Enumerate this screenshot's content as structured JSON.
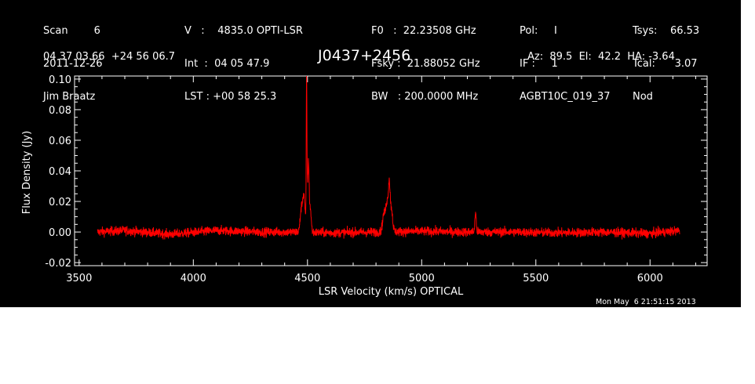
{
  "header": {
    "col1": [
      "Scan        6",
      "2011-12-26",
      "Jim Braatz"
    ],
    "col2": [
      "V   :    4835.0 OPTI-LSR",
      "Int  :  04 05 47.9",
      "LST : +00 58 25.3"
    ],
    "col3": [
      "F0   :  22.23508 GHz",
      "Fsky :  21.88052 GHz",
      "BW   : 200.0000 MHz"
    ],
    "col4": [
      "Pol:     I",
      "IF :     1",
      "AGBT10C_019_37"
    ],
    "col5": [
      "Tsys:    66.53",
      "Tcal:      3.07",
      "Nod"
    ],
    "coords": "04 37 03.66  +24 56 06.7",
    "source": "J0437+2456",
    "pointing": "Az:  89.5  El:  42.2  HA: -3.64",
    "timestamp": "Mon May  6 21:51:15 2013"
  },
  "colors": {
    "background": "#000000",
    "axes": "#ffffff",
    "trace": "#ff0000"
  },
  "chart_data": {
    "type": "line",
    "xlabel": "LSR Velocity (km/s) OPTICAL",
    "ylabel": "Flux Density (Jy)",
    "xlim": [
      3480,
      6250
    ],
    "ylim": [
      -0.022,
      0.102
    ],
    "xticks": [
      3500,
      4000,
      4500,
      5000,
      5500,
      6000
    ],
    "yticks": [
      -0.02,
      0.0,
      0.02,
      0.04,
      0.06,
      0.08,
      0.1
    ],
    "ytick_labels": [
      "-0.02",
      "0.00",
      "0.02",
      "0.04",
      "0.06",
      "0.08",
      "0.10"
    ],
    "grid": false,
    "series": [
      {
        "color": "#ff0000",
        "x_range": [
          3580,
          6130
        ],
        "noise_rms": 0.0015,
        "baseline": [
          [
            3580,
            0.0
          ],
          [
            3700,
            0.001
          ],
          [
            3900,
            -0.0015
          ],
          [
            4100,
            0.001
          ],
          [
            4300,
            0.0
          ],
          [
            4450,
            0.0
          ],
          [
            4600,
            -0.0005
          ],
          [
            4800,
            0.0
          ],
          [
            5000,
            0.0005
          ],
          [
            5200,
            0.0
          ],
          [
            5400,
            0.0
          ],
          [
            5600,
            -0.0005
          ],
          [
            5800,
            0.0
          ],
          [
            6000,
            -0.001
          ],
          [
            6130,
            0.001
          ]
        ],
        "features": [
          {
            "center": 4473,
            "amplitude": 0.015,
            "width": 5
          },
          {
            "center": 4482,
            "amplitude": 0.018,
            "width": 4
          },
          {
            "center": 4488,
            "amplitude": 0.012,
            "width": 4
          },
          {
            "center": 4496,
            "amplitude": 0.092,
            "width": 1.5
          },
          {
            "center": 4500,
            "amplitude": 0.025,
            "width": 3
          },
          {
            "center": 4505,
            "amplitude": 0.036,
            "width": 2.5
          },
          {
            "center": 4512,
            "amplitude": 0.016,
            "width": 4
          },
          {
            "center": 4835,
            "amplitude": 0.012,
            "width": 6
          },
          {
            "center": 4848,
            "amplitude": 0.018,
            "width": 5
          },
          {
            "center": 4858,
            "amplitude": 0.03,
            "width": 4
          },
          {
            "center": 4868,
            "amplitude": 0.014,
            "width": 5
          },
          {
            "center": 5236,
            "amplitude": 0.012,
            "width": 3
          }
        ]
      }
    ]
  }
}
